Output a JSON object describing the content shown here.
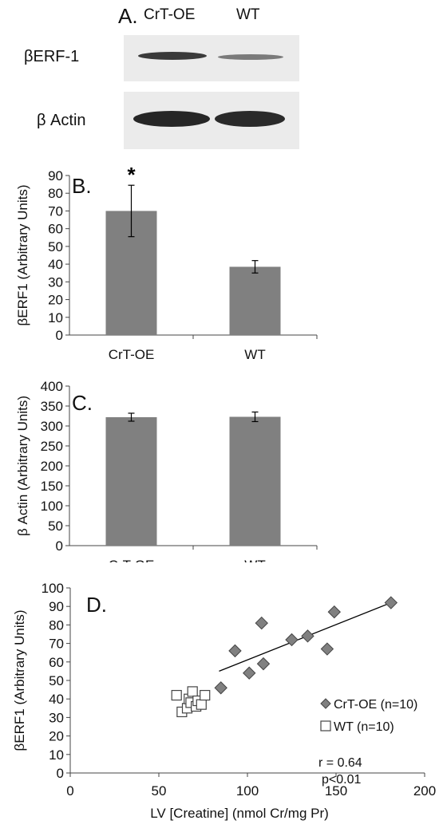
{
  "panel_a": {
    "letter": "A.",
    "lanes": [
      "CrT-OE",
      "WT"
    ],
    "blots": [
      {
        "label": "βERF-1",
        "band_intensity": [
          1.0,
          0.55
        ]
      },
      {
        "label": "β Actin",
        "band_intensity": [
          1.0,
          1.0
        ]
      }
    ]
  },
  "chart_data": [
    {
      "panel": "B.",
      "type": "bar",
      "categories": [
        "CrT-OE",
        "WT"
      ],
      "values": [
        70,
        38.5
      ],
      "error": [
        14.5,
        3.5
      ],
      "significance": [
        "*",
        ""
      ],
      "ylabel": "βERF1 (Arbitrary Units)",
      "ylim": [
        0,
        90
      ],
      "yticks": [
        0,
        10,
        20,
        30,
        40,
        50,
        60,
        70,
        80,
        90
      ],
      "bar_color": "#808080"
    },
    {
      "panel": "C.",
      "type": "bar",
      "categories": [
        "CrT-OE",
        "WT"
      ],
      "values": [
        322,
        323
      ],
      "error": [
        10,
        12
      ],
      "ylabel": "β Actin (Arbitrary Units)",
      "ylim": [
        0,
        400
      ],
      "yticks": [
        0,
        50,
        100,
        150,
        200,
        250,
        300,
        350,
        400
      ],
      "bar_color": "#808080"
    },
    {
      "panel": "D.",
      "type": "scatter",
      "xlabel": "LV [Creatine]  (nmol Cr/mg Pr)",
      "ylabel": "βERF1 (Arbitrary Units)",
      "xlim": [
        0,
        200
      ],
      "ylim": [
        0,
        100
      ],
      "xticks": [
        0,
        50,
        100,
        150,
        200
      ],
      "yticks": [
        0,
        10,
        20,
        30,
        40,
        50,
        60,
        70,
        80,
        90,
        100
      ],
      "series": [
        {
          "name": "CrT-OE (n=10)",
          "marker": "diamond",
          "color": "#808080",
          "points": [
            [
              85,
              46
            ],
            [
              93,
              66
            ],
            [
              101,
              54
            ],
            [
              108,
              81
            ],
            [
              109,
              59
            ],
            [
              125,
              72
            ],
            [
              134,
              74
            ],
            [
              145,
              67
            ],
            [
              149,
              87
            ],
            [
              181,
              92
            ]
          ]
        },
        {
          "name": "WT (n=10)",
          "marker": "square",
          "color": "#ffffff",
          "points": [
            [
              60,
              42
            ],
            [
              63,
              33
            ],
            [
              66,
              35
            ],
            [
              67,
              40
            ],
            [
              68,
              38
            ],
            [
              69,
              44
            ],
            [
              71,
              36
            ],
            [
              72,
              39
            ],
            [
              74,
              37
            ],
            [
              76,
              42
            ]
          ]
        }
      ],
      "trendline": [
        [
          84,
          55
        ],
        [
          181,
          92
        ]
      ],
      "annotations": [
        "r = 0.64",
        "p<0.01"
      ]
    }
  ]
}
